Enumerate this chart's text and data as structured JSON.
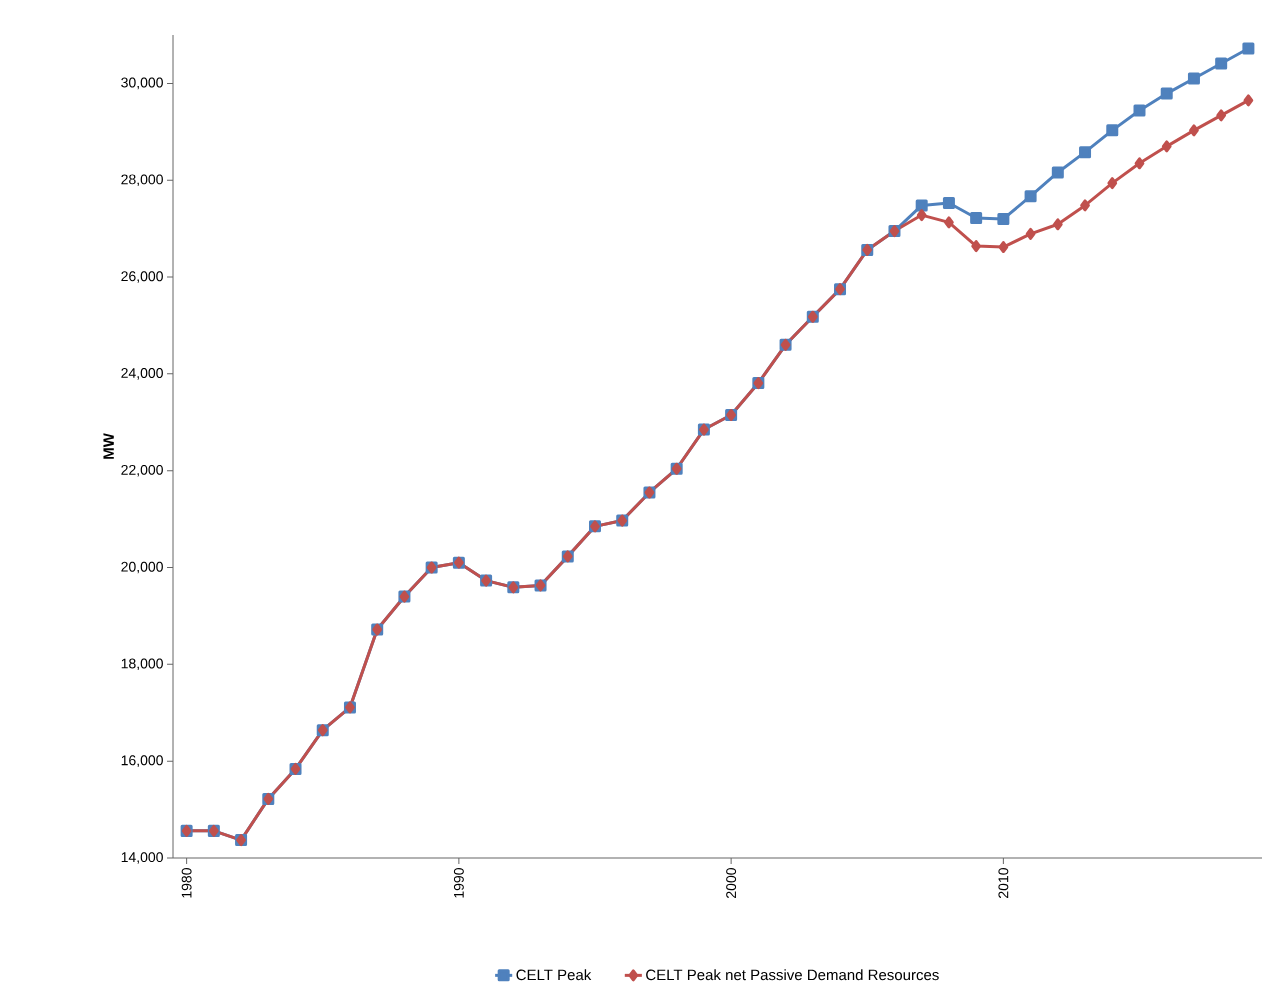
{
  "chart_data": {
    "type": "line",
    "ylabel": "**MW**",
    "x": [
      1980,
      1981,
      1982,
      1983,
      1984,
      1985,
      1986,
      1987,
      1988,
      1989,
      1990,
      1991,
      1992,
      1993,
      1994,
      1995,
      1996,
      1997,
      1998,
      1999,
      2000,
      2001,
      2002,
      2003,
      2004,
      2005,
      2006,
      2007,
      2008,
      2009,
      2010,
      2011,
      2012,
      2013,
      2014,
      2015,
      2016,
      2017,
      2018,
      2019
    ],
    "series": [
      {
        "name": "CELT Peak",
        "color": "#4f81bd",
        "marker": "square",
        "values": [
          14560,
          14560,
          14370,
          15220,
          15840,
          16640,
          17110,
          18720,
          19400,
          20000,
          20100,
          19730,
          19590,
          19630,
          20230,
          20850,
          20970,
          21550,
          22040,
          22850,
          23150,
          23810,
          24600,
          25180,
          25750,
          26560,
          26950,
          27480,
          27530,
          27220,
          27200,
          27670,
          28160,
          28580,
          29030,
          29440,
          29790,
          30100,
          30410,
          30720
        ]
      },
      {
        "name": "CELT Peak net Passive Demand Resources",
        "color": "#c0504d",
        "marker": "diamond",
        "values": [
          14560,
          14560,
          14370,
          15220,
          15840,
          16640,
          17110,
          18720,
          19400,
          20000,
          20100,
          19730,
          19590,
          19630,
          20230,
          20850,
          20970,
          21550,
          22040,
          22850,
          23150,
          23810,
          24600,
          25180,
          25750,
          26560,
          26950,
          27280,
          27130,
          26640,
          26620,
          26890,
          27090,
          27480,
          27940,
          28350,
          28700,
          29030,
          29340,
          29650
        ]
      }
    ],
    "xlim": [
      1979.5,
      2019.5
    ],
    "xticks": [
      1980,
      1990,
      2000,
      2010
    ],
    "ylim": [
      14000,
      31000
    ],
    "yticks": [
      {
        "value": 14000,
        "label": "14,000"
      },
      {
        "value": 16000,
        "label": "16,000"
      },
      {
        "value": 18000,
        "label": "18,000"
      },
      {
        "value": 20000,
        "label": "20,000"
      },
      {
        "value": 22000,
        "label": "22,000"
      },
      {
        "value": 24000,
        "label": "24,000"
      },
      {
        "value": 26000,
        "label": "26,000"
      },
      {
        "value": 28000,
        "label": "28,000"
      },
      {
        "value": 30000,
        "label": "30,000"
      }
    ],
    "grid": false,
    "legend": "bottom",
    "line_style": "solid"
  }
}
